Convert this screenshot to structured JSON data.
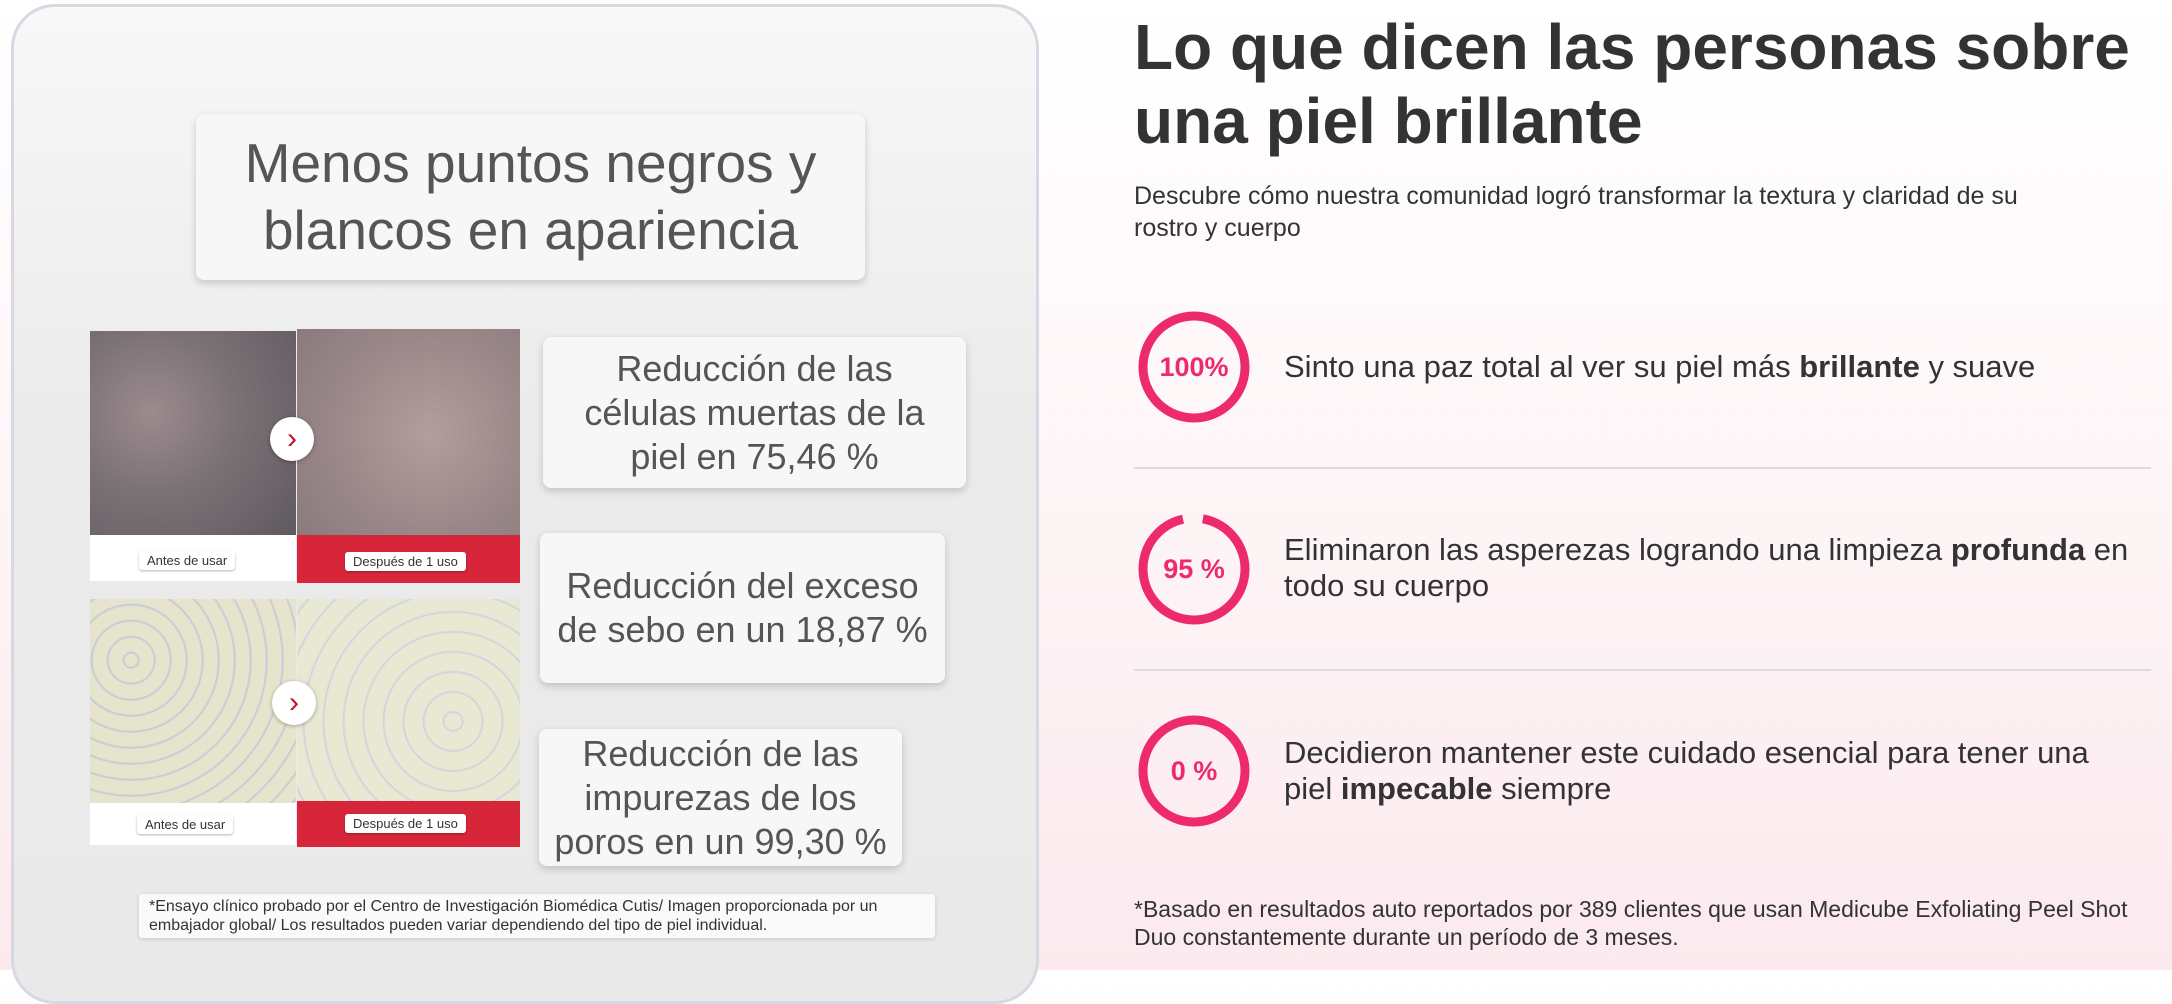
{
  "left_panel": {
    "title": "Menos puntos negros y blancos en apariencia",
    "comparisons": [
      {
        "before_label": "Antes de usar",
        "after_label": "Después de 1 uso"
      },
      {
        "before_label": "Antes de usar",
        "after_label": "Después de 1 uso"
      }
    ],
    "stats": [
      "Reducción de las células muertas de la piel en 75,46 %",
      "Reducción del exceso de sebo en un 18,87 %",
      "Reducción de las impurezas de los poros en un 99,30 %"
    ],
    "footnote": "*Ensayo clínico probado por el Centro de Investigación Biomédica Cutis/ Imagen proporcionada por un embajador global/ Los resultados pueden variar dependiendo del tipo de piel individual."
  },
  "right_panel": {
    "title": "Lo que dicen las personas sobre una piel brillante",
    "subtitle": "Descubre cómo nuestra comunidad logró transformar la textura y claridad de su rostro y cuerpo",
    "items": [
      {
        "percent": "100%",
        "text_before": "Sinto una paz total al ver su piel más ",
        "bold": "brillante",
        "text_after": " y suave"
      },
      {
        "percent": "95 %",
        "text_before": "Eliminaron las asperezas logrando una limpieza ",
        "bold": "profunda",
        "text_after": " en todo su cuerpo"
      },
      {
        "percent": "0 %",
        "text_before": "Decidieron mantener este cuidado esencial para tener una piel ",
        "bold": "impecable",
        "text_after": " siempre"
      }
    ],
    "footnote": "*Basado en resultados auto reportados por 389 clientes que usan Medicube Exfoliating Peel Shot Duo constantemente durante un período de 3 meses."
  }
}
